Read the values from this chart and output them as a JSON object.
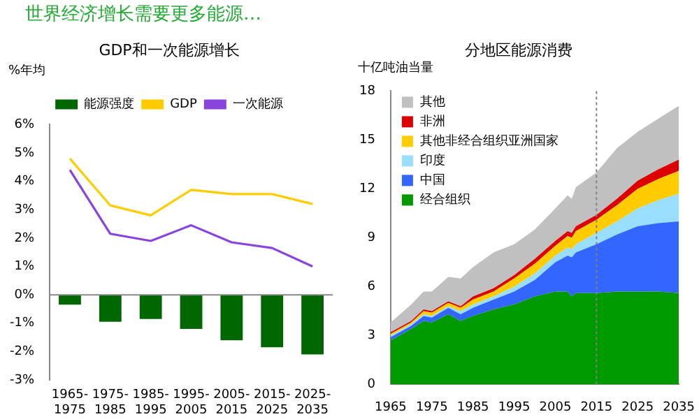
{
  "chart_data": [
    {
      "type": "bar",
      "title": "GDP和一次能源增长",
      "ylabel": "%年均",
      "annotations": [
        "世界经济增长需要更多能源…"
      ],
      "categories": [
        "1965-1975",
        "1975-1985",
        "1985-1995",
        "1995-2005",
        "2005-2015",
        "2015-2025",
        "2025-2035"
      ],
      "series": [
        {
          "name": "能源强度",
          "color": "#006600",
          "values": [
            -0.35,
            -0.95,
            -0.85,
            -1.2,
            -1.6,
            -1.85,
            -2.1
          ]
        },
        {
          "name": "GDP",
          "type": "line",
          "color": "#ffcc00",
          "values": [
            4.8,
            3.15,
            2.8,
            3.7,
            3.55,
            3.55,
            3.2
          ]
        },
        {
          "name": "一次能源",
          "type": "line",
          "color": "#8844dd",
          "values": [
            4.4,
            2.15,
            1.9,
            2.45,
            1.85,
            1.65,
            1.0
          ]
        }
      ],
      "ylim": [
        -3,
        6
      ],
      "yticks": [
        {
          "value": -3,
          "label": "-3%"
        },
        {
          "value": -2,
          "label": "-2%"
        },
        {
          "value": -1,
          "label": "-1%"
        },
        {
          "value": 0,
          "label": "0%"
        },
        {
          "value": 1,
          "label": "1%"
        },
        {
          "value": 2,
          "label": "2%"
        },
        {
          "value": 3,
          "label": "3%"
        },
        {
          "value": 4,
          "label": "4%"
        },
        {
          "value": 5,
          "label": "5%"
        },
        {
          "value": 6,
          "label": "6%"
        }
      ],
      "ref_lines": [
        {
          "axis": "y",
          "value": 0,
          "color": "#888888"
        }
      ],
      "grid": false,
      "legend": "top",
      "marker": "none"
    },
    {
      "type": "area",
      "stacked": true,
      "title": "分地区能源消费",
      "ylabel": "十亿吨油当量",
      "x": [
        1965,
        1970,
        1973,
        1975,
        1979,
        1982,
        1985,
        1990,
        1995,
        2000,
        2005,
        2008,
        2009,
        2010,
        2015,
        2020,
        2025,
        2030,
        2035
      ],
      "series": [
        {
          "name": "经合组织",
          "color": "#009900",
          "values": [
            2.7,
            3.4,
            3.9,
            3.8,
            4.3,
            3.9,
            4.2,
            4.6,
            4.9,
            5.4,
            5.7,
            5.7,
            5.4,
            5.6,
            5.6,
            5.7,
            5.7,
            5.7,
            5.6
          ]
        },
        {
          "name": "中国",
          "color": "#3366ff",
          "values": [
            0.2,
            0.2,
            0.3,
            0.3,
            0.4,
            0.4,
            0.5,
            0.6,
            0.8,
            1.0,
            1.8,
            2.2,
            2.4,
            2.5,
            3.0,
            3.5,
            4.0,
            4.2,
            4.4
          ]
        },
        {
          "name": "印度",
          "color": "#99ddff",
          "values": [
            0.1,
            0.1,
            0.1,
            0.1,
            0.1,
            0.2,
            0.2,
            0.2,
            0.3,
            0.4,
            0.4,
            0.5,
            0.5,
            0.5,
            0.7,
            0.8,
            1.1,
            1.4,
            1.7
          ]
        },
        {
          "name": "其他非经合组织亚洲国家",
          "color": "#ffcc00",
          "values": [
            0.1,
            0.1,
            0.2,
            0.2,
            0.2,
            0.2,
            0.3,
            0.3,
            0.5,
            0.6,
            0.6,
            0.7,
            0.7,
            0.8,
            0.8,
            1.0,
            1.2,
            1.3,
            1.4
          ]
        },
        {
          "name": "非洲",
          "color": "#dd0000",
          "values": [
            0.1,
            0.1,
            0.1,
            0.1,
            0.1,
            0.1,
            0.2,
            0.2,
            0.2,
            0.3,
            0.3,
            0.3,
            0.3,
            0.3,
            0.3,
            0.4,
            0.5,
            0.6,
            0.7
          ]
        },
        {
          "name": "其他",
          "color": "#c0c0c0",
          "values": [
            0.6,
            1.0,
            1.1,
            1.2,
            1.5,
            1.7,
            1.8,
            2.2,
            1.9,
            1.8,
            2.0,
            2.2,
            2.1,
            2.4,
            2.6,
            3.1,
            3.0,
            3.1,
            3.3
          ]
        }
      ],
      "xlim": [
        1965,
        2035
      ],
      "xticks": [
        1965,
        1975,
        1985,
        1995,
        2005,
        2015,
        2025,
        2035
      ],
      "ylim": [
        0,
        18
      ],
      "yticks": [
        0,
        3,
        6,
        9,
        12,
        15,
        18
      ],
      "ref_lines": [
        {
          "axis": "x",
          "value": 2015,
          "color": "#808080",
          "line_style": "dotted"
        }
      ],
      "grid": false,
      "legend": "top left"
    }
  ]
}
